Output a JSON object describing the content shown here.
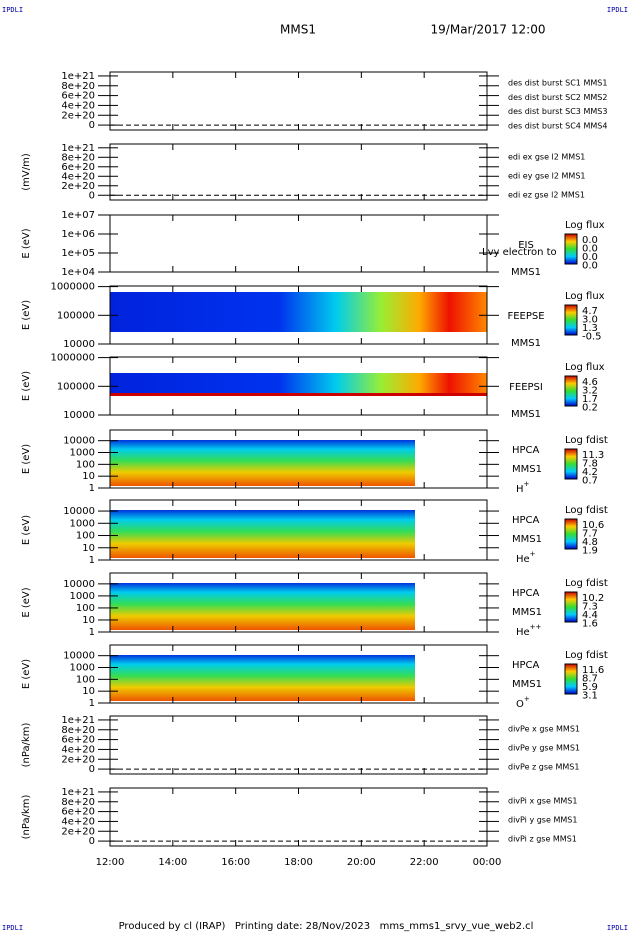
{
  "header": {
    "left_logo": "IPDLI",
    "right_logo": "IPDLI",
    "spacecraft": "MMS1",
    "date": "19/Mar/2017 12:00"
  },
  "footer": {
    "text": "Produced by cl (IRAP)   Printing date: 28/Nov/2023   mms_mms1_srvy_vue_web2.cl",
    "left_logo": "IPDLI",
    "right_logo": "IPDLI"
  },
  "time_axis": {
    "ticks": [
      "12:00",
      "14:00",
      "16:00",
      "18:00",
      "20:00",
      "22:00",
      "00:00"
    ]
  },
  "chart_data": [
    {
      "type": "line",
      "ylim": [
        -1e+20,
        1.08e+21
      ],
      "yticks": [
        0,
        {
          "value": 2e+20,
          "label": "2e+20"
        },
        {
          "value": 4e+20,
          "label": "4e+20"
        },
        {
          "value": 6e+20,
          "label": "6e+20"
        },
        {
          "value": 8e+20,
          "label": "8e+20"
        },
        {
          "value": 1e+21,
          "label": "1e+21"
        }
      ],
      "series": [
        {
          "name": "des dist burst SC1 MMS1",
          "color": "#0000cc"
        },
        {
          "name": "des dist burst SC2 MMS2",
          "color": "#cc00cc"
        },
        {
          "name": "des dist burst SC3 MMS3",
          "color": "#cc0000"
        },
        {
          "name": "des dist burst SC4 MMS4",
          "color": "#00bb00"
        }
      ]
    },
    {
      "type": "line",
      "ylabel": "(mV/m)",
      "ylim": [
        -1e+20,
        1.08e+21
      ],
      "yticks": [
        0,
        {
          "value": 2e+20,
          "label": "2e+20"
        },
        {
          "value": 4e+20,
          "label": "4e+20"
        },
        {
          "value": 6e+20,
          "label": "6e+20"
        },
        {
          "value": 8e+20,
          "label": "8e+20"
        },
        {
          "value": 1e+21,
          "label": "1e+21"
        }
      ],
      "series": [
        {
          "name": "edi ex gse l2 MMS1",
          "color": "#cc0000"
        },
        {
          "name": "edi ey gse l2 MMS1",
          "color": "#00bb00"
        },
        {
          "name": "edi ez gse l2 MMS1",
          "color": "#0000cc"
        }
      ]
    },
    {
      "type": "spectrogram",
      "ylabel": "E (eV)",
      "log": true,
      "ylim": [
        10000.0,
        10000000.0
      ],
      "yticks": [
        {
          "value": 10000.0,
          "label": "1e+04"
        },
        {
          "value": 100000.0,
          "label": "1e+05"
        },
        {
          "value": 1000000.0,
          "label": "1e+06"
        },
        {
          "value": 10000000.0,
          "label": "1e+07"
        }
      ],
      "instrument": "EIS",
      "spacecraft": "MMS1",
      "note": "Lvy electron to",
      "colorbar": {
        "title": "Log flux",
        "labels": [
          "0.0",
          "0.0",
          "0.0",
          "0.0"
        ]
      }
    },
    {
      "type": "spectrogram",
      "ylabel": "E (eV)",
      "log": true,
      "ylim": [
        10000,
        1050000
      ],
      "yticks": [
        10000,
        100000,
        1000000
      ],
      "instrument": "FEEPSE",
      "spacecraft": "MMS1",
      "colorbar": {
        "title": "Log flux",
        "labels": [
          "4.7",
          "3.0",
          "1.3",
          "-0.5"
        ]
      }
    },
    {
      "type": "spectrogram",
      "ylabel": "E (eV)",
      "log": true,
      "ylim": [
        10000,
        1050000
      ],
      "yticks": [
        10000,
        100000,
        1000000
      ],
      "instrument": "FEEPSI",
      "spacecraft": "MMS1",
      "colorbar": {
        "title": "Log flux",
        "labels": [
          "4.6",
          "3.2",
          "1.7",
          "0.2"
        ]
      }
    },
    {
      "type": "spectrogram",
      "ylabel": "E (eV)",
      "log": true,
      "ylim": [
        1,
        80000
      ],
      "yticks": [
        1,
        10,
        100,
        1000,
        10000
      ],
      "instrument": "HPCA",
      "spacecraft": "MMS1",
      "species": {
        "base": "H",
        "charge": "+"
      },
      "colorbar": {
        "title": "Log fdist",
        "labels": [
          "11.3",
          "7.8",
          "4.2",
          "0.7"
        ]
      }
    },
    {
      "type": "spectrogram",
      "ylabel": "E (eV)",
      "log": true,
      "ylim": [
        1,
        80000
      ],
      "yticks": [
        1,
        10,
        100,
        1000,
        10000
      ],
      "instrument": "HPCA",
      "spacecraft": "MMS1",
      "species": {
        "base": "He",
        "charge": "+"
      },
      "colorbar": {
        "title": "Log fdist",
        "labels": [
          "10.6",
          "7.7",
          "4.8",
          "1.9"
        ]
      }
    },
    {
      "type": "spectrogram",
      "ylabel": "E (eV)",
      "log": true,
      "ylim": [
        1,
        80000
      ],
      "yticks": [
        1,
        10,
        100,
        1000,
        10000
      ],
      "instrument": "HPCA",
      "spacecraft": "MMS1",
      "species": {
        "base": "He",
        "charge": "++"
      },
      "colorbar": {
        "title": "Log fdist",
        "labels": [
          "10.2",
          "7.3",
          "4.4",
          "1.6"
        ]
      }
    },
    {
      "type": "spectrogram",
      "ylabel": "E (eV)",
      "log": true,
      "ylim": [
        1,
        80000
      ],
      "yticks": [
        1,
        10,
        100,
        1000,
        10000
      ],
      "instrument": "HPCA",
      "spacecraft": "MMS1",
      "species": {
        "base": "O",
        "charge": "+"
      },
      "colorbar": {
        "title": "Log fdist",
        "labels": [
          "11.6",
          "8.7",
          "5.9",
          "3.1"
        ]
      }
    },
    {
      "type": "line",
      "ylabel": "(nPa/km)",
      "ylim": [
        -1e+20,
        1.08e+21
      ],
      "yticks": [
        0,
        {
          "value": 2e+20,
          "label": "2e+20"
        },
        {
          "value": 4e+20,
          "label": "4e+20"
        },
        {
          "value": 6e+20,
          "label": "6e+20"
        },
        {
          "value": 8e+20,
          "label": "8e+20"
        },
        {
          "value": 1e+21,
          "label": "1e+21"
        }
      ],
      "series": [
        {
          "name": "divPe x gse MMS1",
          "color": "#cc0000"
        },
        {
          "name": "divPe y gse MMS1",
          "color": "#00bb00"
        },
        {
          "name": "divPe z gse MMS1",
          "color": "#0000cc"
        }
      ]
    },
    {
      "type": "line",
      "ylabel": "(nPa/km)",
      "ylim": [
        -1e+20,
        1.08e+21
      ],
      "yticks": [
        0,
        {
          "value": 2e+20,
          "label": "2e+20"
        },
        {
          "value": 4e+20,
          "label": "4e+20"
        },
        {
          "value": 6e+20,
          "label": "6e+20"
        },
        {
          "value": 8e+20,
          "label": "8e+20"
        },
        {
          "value": 1e+21,
          "label": "1e+21"
        }
      ],
      "series": [
        {
          "name": "divPi x gse MMS1",
          "color": "#cc0000"
        },
        {
          "name": "divPi y gse MMS1",
          "color": "#00bb00"
        },
        {
          "name": "divPi z gse MMS1",
          "color": "#0000cc"
        }
      ]
    }
  ]
}
